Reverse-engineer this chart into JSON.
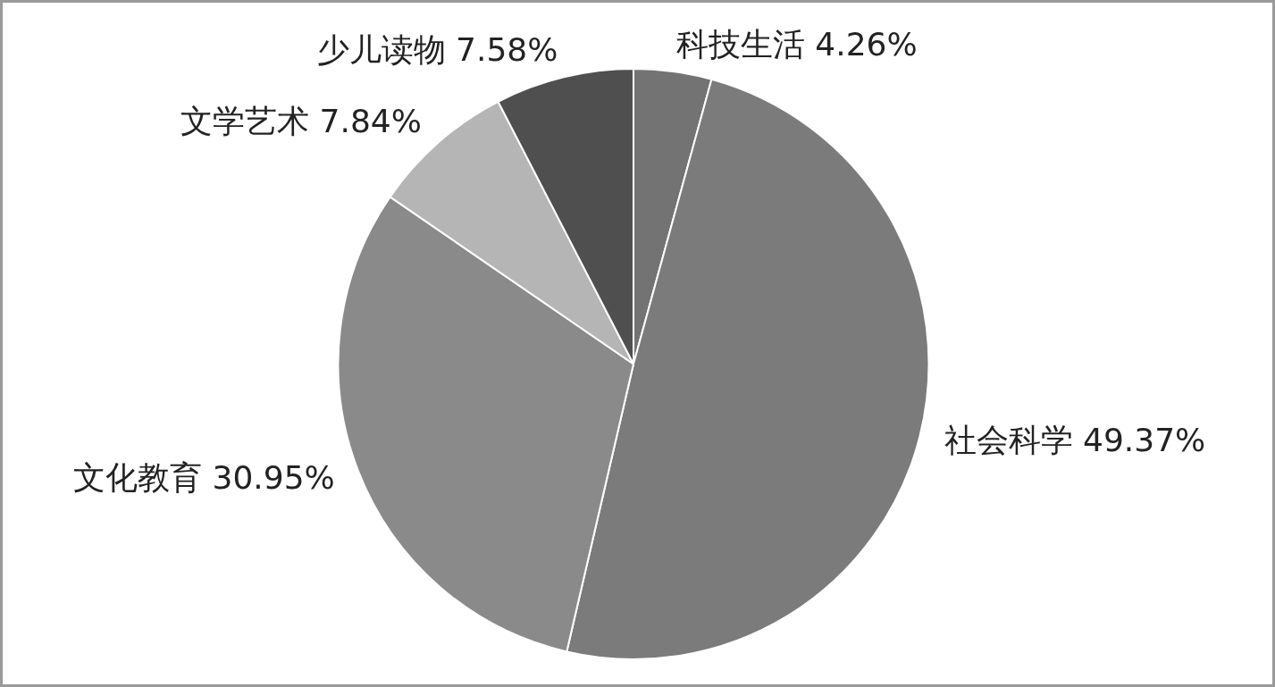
{
  "chart_data": {
    "type": "pie",
    "categories": [
      "科技生活",
      "社会科学",
      "文化教育",
      "文学艺术",
      "少儿读物"
    ],
    "values": [
      4.26,
      49.37,
      30.95,
      7.84,
      7.58
    ],
    "value_labels": [
      "4.26%",
      "49.37%",
      "30.95%",
      "7.84%",
      "7.58%"
    ],
    "colors": [
      "#737373",
      "#7b7b7b",
      "#8a8a8a",
      "#b5b5b5",
      "#4f4f4f"
    ],
    "legend": false
  }
}
